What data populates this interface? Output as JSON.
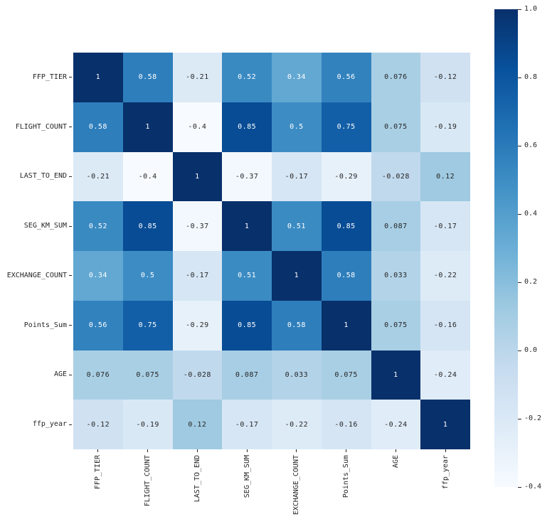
{
  "chart_data": {
    "type": "heatmap",
    "title": "",
    "xlabel": "",
    "ylabel": "",
    "categories": [
      "FFP_TIER",
      "FLIGHT_COUNT",
      "LAST_TO_END",
      "SEG_KM_SUM",
      "EXCHANGE_COUNT",
      "Points_Sum",
      "AGE",
      "ffp_year"
    ],
    "matrix": [
      [
        1,
        0.58,
        -0.21,
        0.52,
        0.34,
        0.56,
        0.076,
        -0.12
      ],
      [
        0.58,
        1,
        -0.4,
        0.85,
        0.5,
        0.75,
        0.075,
        -0.19
      ],
      [
        -0.21,
        -0.4,
        1,
        -0.37,
        -0.17,
        -0.29,
        -0.028,
        0.12
      ],
      [
        0.52,
        0.85,
        -0.37,
        1,
        0.51,
        0.85,
        0.087,
        -0.17
      ],
      [
        0.34,
        0.5,
        -0.17,
        0.51,
        1,
        0.58,
        0.033,
        -0.22
      ],
      [
        0.56,
        0.75,
        -0.29,
        0.85,
        0.58,
        1,
        0.075,
        -0.16
      ],
      [
        0.076,
        0.075,
        -0.028,
        0.087,
        0.033,
        0.075,
        1,
        -0.24
      ],
      [
        -0.12,
        -0.19,
        0.12,
        -0.17,
        -0.22,
        -0.16,
        -0.24,
        1
      ]
    ],
    "vmin": -0.4,
    "vmax": 1.0,
    "colormap_name": "Blues",
    "colormap_anchors": [
      [
        247,
        251,
        255
      ],
      [
        222,
        235,
        247
      ],
      [
        198,
        219,
        239
      ],
      [
        158,
        202,
        225
      ],
      [
        107,
        174,
        214
      ],
      [
        66,
        146,
        198
      ],
      [
        33,
        113,
        181
      ],
      [
        8,
        81,
        156
      ],
      [
        8,
        48,
        107
      ]
    ],
    "annotation_text_colors": {
      "on_dark": "#ffffff",
      "on_light": "#262626"
    },
    "tick_color": "#262626",
    "legend_position": "right",
    "grid": false,
    "colorbar_ticks": [
      {
        "label": "1.0",
        "value": 1.0
      },
      {
        "label": "0.8",
        "value": 0.8
      },
      {
        "label": "0.6",
        "value": 0.6
      },
      {
        "label": "0.4",
        "value": 0.4
      },
      {
        "label": "0.2",
        "value": 0.2
      },
      {
        "label": "0.0",
        "value": 0.0
      },
      {
        "label": "-0.2",
        "value": -0.2
      },
      {
        "label": "-0.4",
        "value": -0.4
      }
    ]
  }
}
